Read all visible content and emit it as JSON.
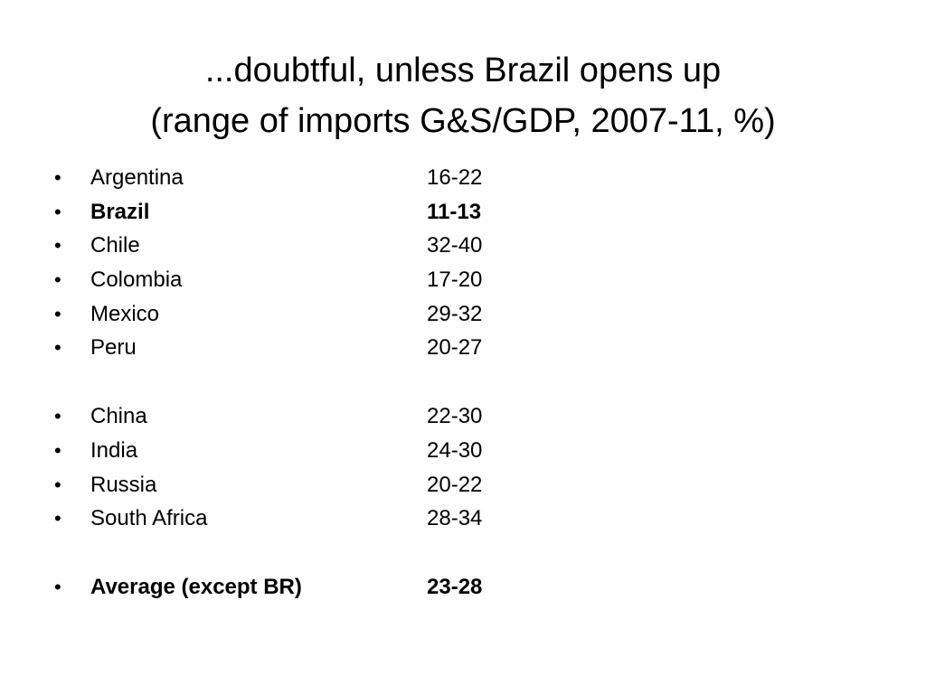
{
  "title": {
    "line1": "...doubtful, unless Brazil opens up",
    "line2": "(range of imports G&S/GDP, 2007-11, %)"
  },
  "bullet_glyph": "•",
  "groups": [
    {
      "rows": [
        {
          "country": "Argentina",
          "range": "16-22",
          "bold": false
        },
        {
          "country": "Brazil",
          "range": "11-13",
          "bold": true
        },
        {
          "country": "Chile",
          "range": "32-40",
          "bold": false
        },
        {
          "country": "Colombia",
          "range": "17-20",
          "bold": false
        },
        {
          "country": "Mexico",
          "range": "29-32",
          "bold": false
        },
        {
          "country": "Peru",
          "range": "20-27",
          "bold": false
        }
      ]
    },
    {
      "rows": [
        {
          "country": "China",
          "range": "22-30",
          "bold": false
        },
        {
          "country": "India",
          "range": "24-30",
          "bold": false
        },
        {
          "country": "Russia",
          "range": "20-22",
          "bold": false
        },
        {
          "country": "South Africa",
          "range": "28-34",
          "bold": false
        }
      ]
    },
    {
      "rows": [
        {
          "country": "Average (except BR)",
          "range": "23-28",
          "bold": true
        }
      ]
    }
  ]
}
